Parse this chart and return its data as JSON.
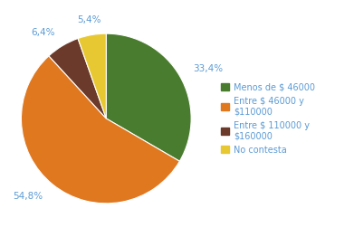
{
  "slices": [
    33.4,
    54.8,
    6.4,
    5.4
  ],
  "colors": [
    "#4a7c2f",
    "#e07820",
    "#6b3a2a",
    "#e8c832"
  ],
  "labels": [
    "33,4%",
    "54,8%",
    "6,4%",
    "5,4%"
  ],
  "label_offsets": [
    1.18,
    1.18,
    1.18,
    1.18
  ],
  "legend_labels": [
    "Menos de $ 46000",
    "Entre $ 46000 y\n$110000",
    "Entre $ 110000 y\n$160000",
    "No contesta"
  ],
  "label_color": "#5b9bd5",
  "startangle": 90,
  "bg_color": "#ffffff",
  "label_fontsize": 7.5,
  "legend_fontsize": 7.0
}
